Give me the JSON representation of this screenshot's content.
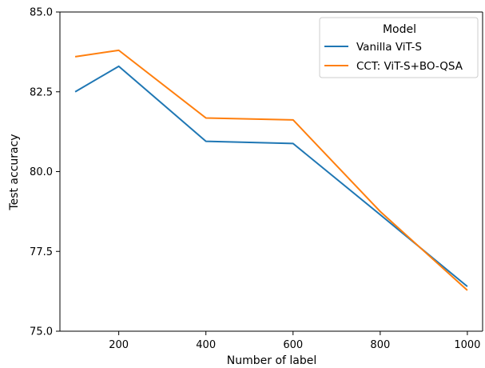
{
  "chart_data": {
    "type": "line",
    "title": "",
    "xlabel": "Number of label",
    "ylabel": "Test accuracy",
    "xlim": [
      65,
      1035
    ],
    "ylim": [
      75.0,
      85.0
    ],
    "xticks": [
      200,
      400,
      600,
      800,
      1000
    ],
    "xtick_labels": [
      "200",
      "400",
      "600",
      "800",
      "1000"
    ],
    "yticks": [
      75.0,
      77.5,
      80.0,
      82.5,
      85.0
    ],
    "ytick_labels": [
      "75.0",
      "77.5",
      "80.0",
      "82.5",
      "85.0"
    ],
    "grid": false,
    "x": [
      100,
      200,
      400,
      600,
      800,
      1000
    ],
    "legend": {
      "title": "Model",
      "placement": "top-right"
    },
    "series": [
      {
        "name": "Vanilla ViT-S",
        "color": "#1f77b4",
        "values": [
          82.5,
          83.3,
          80.95,
          80.88,
          78.65,
          76.4
        ]
      },
      {
        "name": "CCT: ViT-S+BO-QSA",
        "color": "#ff7f0e",
        "values": [
          83.6,
          83.8,
          81.68,
          81.62,
          78.75,
          76.28
        ]
      }
    ]
  }
}
